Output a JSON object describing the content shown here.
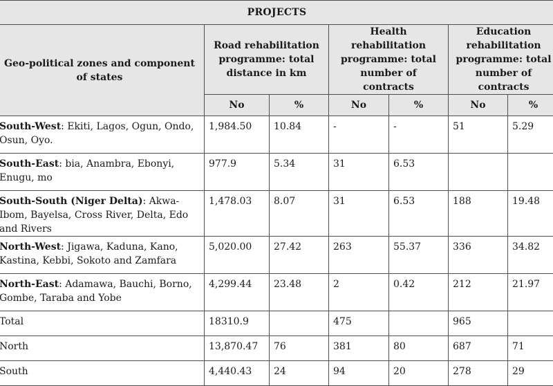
{
  "table": {
    "title": "PROJECTS",
    "zone_header": "Geo-political zones and component of states",
    "group_headers": [
      "Road rehabilitation programme: total distance in km",
      "Health rehabilitation programme: total number of contracts",
      "Education rehabilitation programme: total number of contracts"
    ],
    "sub_headers": [
      "No",
      "%",
      "No",
      "%",
      "No",
      "%"
    ],
    "rows": [
      {
        "zone": "South-West",
        "states": "Ekiti, Lagos, Ogun, Ondo, Osun, Oyo.",
        "road_no": "1,984.50",
        "road_pct": "10.84",
        "health_no": "-",
        "health_pct": "-",
        "edu_no": "51",
        "edu_pct": "5.29"
      },
      {
        "zone": "South-East",
        "states": "bia, Anambra, Ebonyi, Enugu, mo",
        "road_no": "977.9",
        "road_pct": "5.34",
        "health_no": "31",
        "health_pct": "6.53",
        "edu_no": "",
        "edu_pct": ""
      },
      {
        "zone": "South-South (Niger Delta)",
        "states": "Akwa-Ibom, Bayelsa, Cross River, Delta, Edo and Rivers",
        "road_no": "1,478.03",
        "road_pct": "8.07",
        "health_no": "31",
        "health_pct": "6.53",
        "edu_no": "188",
        "edu_pct": "19.48"
      },
      {
        "zone": "North-West",
        "states": "Jigawa, Kaduna, Kano, Kastina, Kebbi, Sokoto and Zamfara",
        "road_no": "5,020.00",
        "road_pct": "27.42",
        "health_no": "263",
        "health_pct": "55.37",
        "edu_no": "336",
        "edu_pct": "34.82"
      },
      {
        "zone": "North-East",
        "states": "Adamawa, Bauchi, Borno, Gombe, Taraba and Yobe",
        "road_no": "4,299.44",
        "road_pct": "23.48",
        "health_no": "2",
        "health_pct": "0.42",
        "edu_no": "212",
        "edu_pct": "21.97"
      }
    ],
    "summary_rows": [
      {
        "label": "Total",
        "road_no": "18310.9",
        "road_pct": "",
        "health_no": "475",
        "health_pct": "",
        "edu_no": "965",
        "edu_pct": ""
      },
      {
        "label": "North",
        "road_no": "13,870.47",
        "road_pct": "76",
        "health_no": "381",
        "health_pct": "80",
        "edu_no": "687",
        "edu_pct": "71"
      },
      {
        "label": "South",
        "road_no": "4,440.43",
        "road_pct": "24",
        "health_no": "94",
        "health_pct": "20",
        "edu_no": "278",
        "edu_pct": "29"
      }
    ]
  }
}
